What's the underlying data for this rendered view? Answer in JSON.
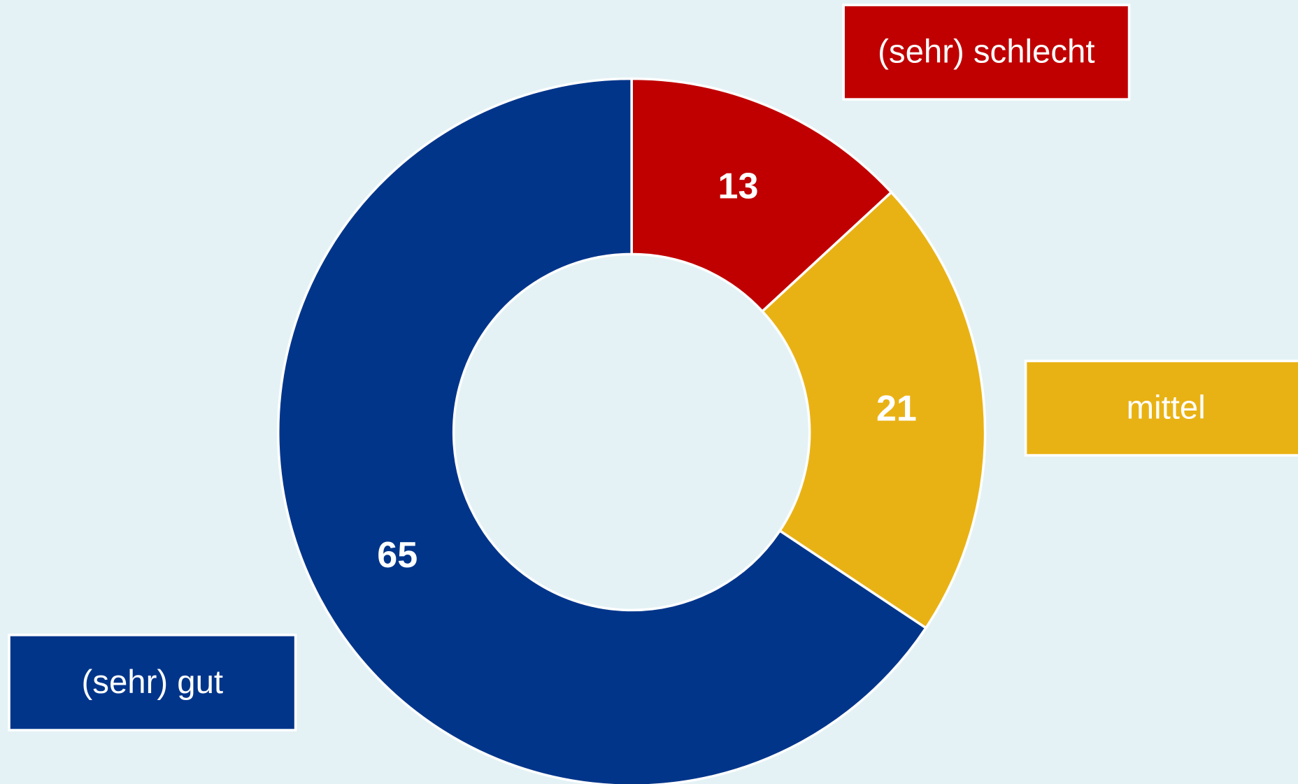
{
  "chart_data": {
    "type": "donut",
    "categories": [
      "(sehr) schlecht",
      "mittel",
      "(sehr) gut"
    ],
    "values": [
      13,
      21,
      65
    ],
    "colors": [
      "#c00000",
      "#e9b214",
      "#00358a"
    ]
  }
}
